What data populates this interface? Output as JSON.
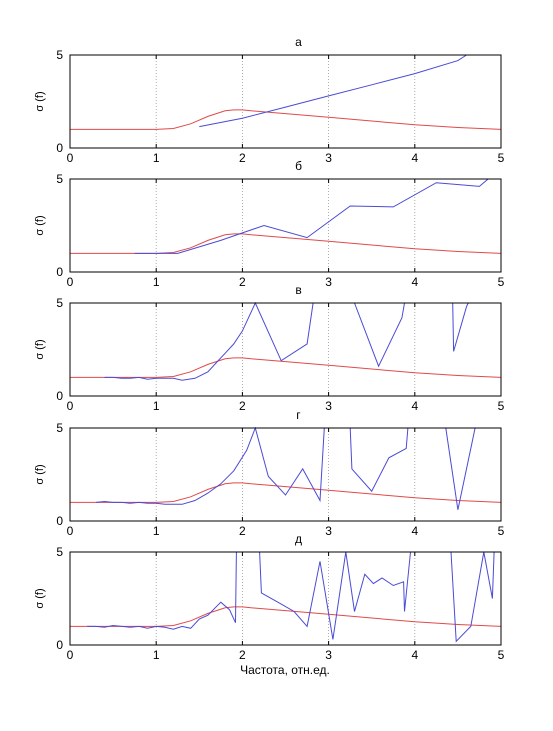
{
  "figure": {
    "xlabel": "Частота, отн.ед."
  },
  "colors": {
    "reference_line": "#e04a4a",
    "measured_line": "#4a4ad6",
    "grid": "#9a9a9a",
    "axes": "#000000",
    "background": "#ffffff"
  },
  "chart_data": [
    {
      "type": "line",
      "title": "а",
      "xlabel": "",
      "ylabel": "σ (f)",
      "xlim": [
        0,
        5
      ],
      "ylim": [
        0,
        5
      ],
      "xticks": [
        "0",
        "1",
        "2",
        "3",
        "4",
        "5"
      ],
      "yticks": [
        "0",
        "5"
      ],
      "grid": "vertical dotted at x = 1, 2, 3, 4",
      "series": [
        {
          "color": "red",
          "x": [
            0,
            0.2,
            0.5,
            0.8,
            1,
            1.2,
            1.4,
            1.6,
            1.8,
            1.9,
            2,
            2.1,
            2.5,
            3,
            3.5,
            4,
            4.5,
            5
          ],
          "y": [
            1,
            1,
            1,
            1,
            1,
            1.05,
            1.3,
            1.7,
            2,
            2.05,
            2.05,
            2,
            1.85,
            1.65,
            1.45,
            1.25,
            1.1,
            1
          ]
        },
        {
          "color": "blue",
          "x": [
            1.5,
            2,
            2.5,
            3,
            3.5,
            4,
            4.5,
            4.6
          ],
          "y": [
            1.15,
            1.6,
            2.2,
            2.8,
            3.4,
            4,
            4.7,
            5
          ]
        }
      ]
    },
    {
      "type": "line",
      "title": "б",
      "xlabel": "",
      "ylabel": "σ (f)",
      "xlim": [
        0,
        5
      ],
      "ylim": [
        0,
        5
      ],
      "xticks": [
        "0",
        "1",
        "2",
        "3",
        "4",
        "5"
      ],
      "yticks": [
        "0",
        "5"
      ],
      "grid": "vertical dotted at x = 1, 2, 3, 4",
      "series": [
        {
          "color": "red",
          "x": [
            0,
            0.2,
            0.5,
            0.8,
            1,
            1.2,
            1.4,
            1.6,
            1.8,
            1.9,
            2,
            2.1,
            2.5,
            3,
            3.5,
            4,
            4.5,
            5
          ],
          "y": [
            1,
            1,
            1,
            1,
            1,
            1.05,
            1.3,
            1.7,
            2,
            2.05,
            2.05,
            2,
            1.85,
            1.65,
            1.45,
            1.25,
            1.1,
            1
          ]
        },
        {
          "color": "blue",
          "x": [
            0.75,
            1,
            1.25,
            1.75,
            2,
            2.25,
            2.75,
            3.25,
            3.75,
            4.25,
            4.75,
            4.85
          ],
          "y": [
            1,
            1,
            1,
            1.7,
            2.1,
            2.5,
            1.85,
            3.55,
            3.5,
            4.8,
            4.6,
            5
          ]
        }
      ]
    },
    {
      "type": "line",
      "title": "в",
      "xlabel": "",
      "ylabel": "σ (f)",
      "xlim": [
        0,
        5
      ],
      "ylim": [
        0,
        5
      ],
      "xticks": [
        "0",
        "1",
        "2",
        "3",
        "4",
        "5"
      ],
      "yticks": [
        "0",
        "5"
      ],
      "grid": "vertical dotted at x = 1, 2, 3, 4",
      "series": [
        {
          "color": "red",
          "x": [
            0,
            0.2,
            0.5,
            0.8,
            1,
            1.2,
            1.4,
            1.6,
            1.8,
            1.9,
            2,
            2.1,
            2.5,
            3,
            3.5,
            4,
            4.5,
            5
          ],
          "y": [
            1,
            1,
            1,
            1,
            1,
            1.05,
            1.3,
            1.7,
            2,
            2.05,
            2.05,
            2,
            1.85,
            1.65,
            1.45,
            1.25,
            1.1,
            1
          ]
        },
        {
          "color": "blue",
          "x": [
            0.4,
            0.5,
            0.6,
            0.7,
            0.8,
            0.9,
            1,
            1.1,
            1.2,
            1.3,
            1.45,
            1.6,
            1.7,
            1.8,
            1.9,
            2,
            2.15,
            2.45,
            2.75,
            2.82
          ],
          "y": [
            1,
            1,
            0.95,
            0.95,
            1,
            0.9,
            0.95,
            0.95,
            0.95,
            0.85,
            0.95,
            1.3,
            1.8,
            2.3,
            2.8,
            3.5,
            5,
            1.9,
            2.8,
            5
          ]
        },
        {
          "color": "blue",
          "x": [
            3.3,
            3.58,
            3.85,
            3.88
          ],
          "y": [
            5,
            1.6,
            4.2,
            5
          ]
        },
        {
          "color": "blue",
          "x": [
            4.44,
            4.45,
            4.6,
            4.62
          ],
          "y": [
            5,
            2.4,
            4.8,
            5
          ]
        }
      ]
    },
    {
      "type": "line",
      "title": "г",
      "xlabel": "",
      "ylabel": "σ (f)",
      "xlim": [
        0,
        5
      ],
      "ylim": [
        0,
        5
      ],
      "xticks": [
        "0",
        "1",
        "2",
        "3",
        "4",
        "5"
      ],
      "yticks": [
        "0",
        "5"
      ],
      "grid": "vertical dotted at x = 1, 2, 3, 4",
      "series": [
        {
          "color": "red",
          "x": [
            0,
            0.2,
            0.5,
            0.8,
            1,
            1.2,
            1.4,
            1.6,
            1.8,
            1.9,
            2,
            2.1,
            2.5,
            3,
            3.5,
            4,
            4.5,
            5
          ],
          "y": [
            1,
            1,
            1,
            1,
            1,
            1.05,
            1.3,
            1.7,
            2,
            2.05,
            2.05,
            2,
            1.85,
            1.65,
            1.45,
            1.25,
            1.1,
            1
          ]
        },
        {
          "color": "blue",
          "x": [
            0.3,
            0.4,
            0.5,
            0.6,
            0.7,
            0.8,
            0.9,
            1,
            1.1,
            1.2,
            1.3,
            1.45,
            1.6,
            1.75,
            1.9,
            2.05,
            2.15,
            2.3,
            2.5,
            2.7,
            2.9,
            2.95
          ],
          "y": [
            1,
            1.05,
            1,
            1,
            0.95,
            1,
            0.95,
            0.95,
            0.9,
            0.9,
            0.9,
            1.1,
            1.5,
            2,
            2.7,
            3.8,
            5,
            2.4,
            1.4,
            2.8,
            1.1,
            5
          ]
        },
        {
          "color": "blue",
          "x": [
            3.25,
            3.27,
            3.5,
            3.7,
            3.9,
            3.92
          ],
          "y": [
            5,
            2.8,
            1.6,
            3.4,
            3.9,
            5
          ]
        },
        {
          "color": "blue",
          "x": [
            4.36,
            4.5,
            4.7
          ],
          "y": [
            5,
            0.6,
            5
          ]
        }
      ]
    },
    {
      "type": "line",
      "title": "д",
      "xlabel": "Частота, отн.ед.",
      "ylabel": "σ (f)",
      "xlim": [
        0,
        5
      ],
      "ylim": [
        0,
        5
      ],
      "xticks": [
        "0",
        "1",
        "2",
        "3",
        "4",
        "5"
      ],
      "yticks": [
        "0",
        "5"
      ],
      "grid": "vertical dotted at x = 1, 2, 3, 4",
      "series": [
        {
          "color": "red",
          "x": [
            0,
            0.2,
            0.5,
            0.8,
            1,
            1.2,
            1.4,
            1.6,
            1.8,
            1.9,
            2,
            2.1,
            2.5,
            3,
            3.5,
            4,
            4.5,
            5
          ],
          "y": [
            1,
            1,
            1,
            1,
            1,
            1.05,
            1.3,
            1.7,
            2,
            2.05,
            2.05,
            2,
            1.85,
            1.65,
            1.45,
            1.25,
            1.1,
            1
          ]
        },
        {
          "color": "blue",
          "x": [
            0.2,
            0.3,
            0.4,
            0.5,
            0.6,
            0.7,
            0.8,
            0.9,
            1,
            1.1,
            1.2,
            1.3,
            1.4,
            1.5,
            1.6,
            1.75,
            1.85,
            1.92,
            1.93
          ],
          "y": [
            1,
            1,
            0.95,
            1.05,
            1,
            0.95,
            1,
            0.9,
            1,
            0.95,
            0.85,
            1,
            0.9,
            1.4,
            1.6,
            2.3,
            1.9,
            1.2,
            5
          ]
        },
        {
          "color": "blue",
          "x": [
            2.2,
            2.22,
            2.45,
            2.6,
            2.75,
            2.9,
            3.05,
            3.2,
            3.3,
            3.42,
            3.52,
            3.62,
            3.75,
            3.87,
            3.88,
            3.95
          ],
          "y": [
            5,
            2.8,
            2.2,
            1.8,
            1,
            4.5,
            0.3,
            5,
            1.8,
            3.8,
            3.3,
            3.6,
            3.2,
            3.4,
            1.8,
            5
          ]
        },
        {
          "color": "blue",
          "x": [
            4.42,
            4.48,
            4.65,
            4.8,
            4.9,
            4.92
          ],
          "y": [
            5,
            0.2,
            1,
            5,
            2.5,
            5
          ]
        }
      ]
    }
  ]
}
